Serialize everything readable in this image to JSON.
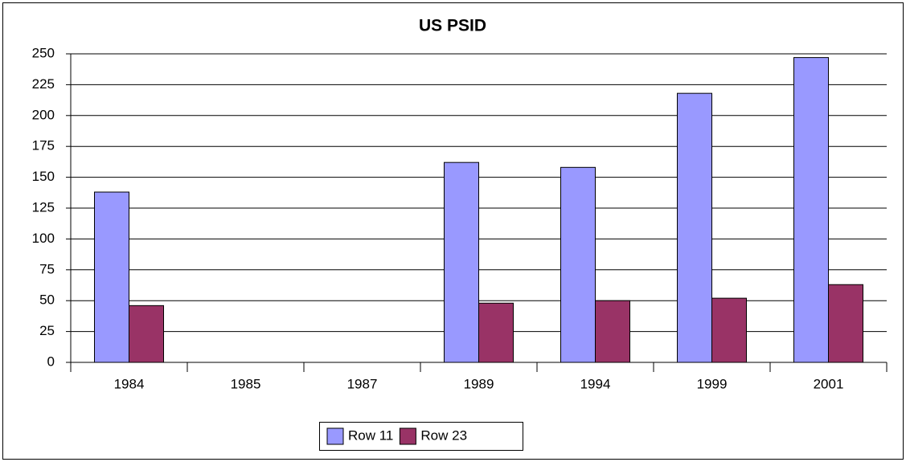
{
  "chart_data": {
    "type": "bar",
    "title": "US PSID",
    "categories": [
      "1984",
      "1985",
      "1987",
      "1989",
      "1994",
      "1999",
      "2001"
    ],
    "series": [
      {
        "name": "Row 11",
        "color": "#9999ff",
        "values": [
          138,
          null,
          null,
          162,
          158,
          218,
          247
        ]
      },
      {
        "name": "Row 23",
        "color": "#993366",
        "values": [
          46,
          null,
          null,
          48,
          50,
          52,
          63
        ]
      }
    ],
    "ylim": [
      0,
      250
    ],
    "yticks": [
      0,
      25,
      50,
      75,
      100,
      125,
      150,
      175,
      200,
      225,
      250
    ],
    "grid": true,
    "legend": "bottom"
  }
}
